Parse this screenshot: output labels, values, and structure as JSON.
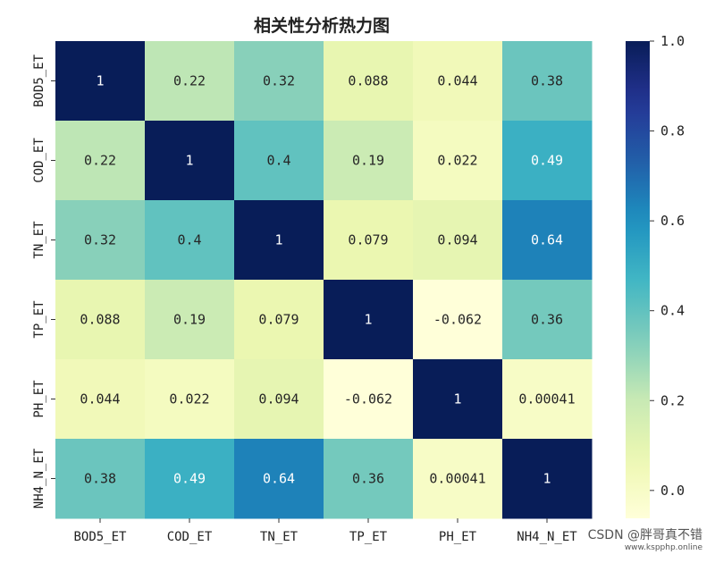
{
  "chart_data": {
    "type": "heatmap",
    "title": "相关性分析热力图",
    "x_labels": [
      "BOD5_ET",
      "COD_ET",
      "TN_ET",
      "TP_ET",
      "PH_ET",
      "NH4_N_ET"
    ],
    "y_labels": [
      "BOD5_ET",
      "COD_ET",
      "TN_ET",
      "TP_ET",
      "PH_ET",
      "NH4_N_ET"
    ],
    "values": [
      [
        1,
        0.22,
        0.32,
        0.088,
        0.044,
        0.38
      ],
      [
        0.22,
        1,
        0.4,
        0.19,
        0.022,
        0.49
      ],
      [
        0.32,
        0.4,
        1,
        0.079,
        0.094,
        0.64
      ],
      [
        0.088,
        0.19,
        0.079,
        1,
        -0.062,
        0.36
      ],
      [
        0.044,
        0.022,
        0.094,
        -0.062,
        1,
        0.00041
      ],
      [
        0.38,
        0.49,
        0.64,
        0.36,
        0.00041,
        1
      ]
    ],
    "value_labels": [
      [
        "1",
        "0.22",
        "0.32",
        "0.088",
        "0.044",
        "0.38"
      ],
      [
        "0.22",
        "1",
        "0.4",
        "0.19",
        "0.022",
        "0.49"
      ],
      [
        "0.32",
        "0.4",
        "1",
        "0.079",
        "0.094",
        "0.64"
      ],
      [
        "0.088",
        "0.19",
        "0.079",
        "1",
        "-0.062",
        "0.36"
      ],
      [
        "0.044",
        "0.022",
        "0.094",
        "-0.062",
        "1",
        "0.00041"
      ],
      [
        "0.38",
        "0.49",
        "0.64",
        "0.36",
        "0.00041",
        "1"
      ]
    ],
    "colormap": "YlGnBu",
    "vmin": -0.062,
    "vmax": 1.0,
    "colorbar_ticks": [
      "0.0",
      "0.2",
      "0.4",
      "0.6",
      "0.8",
      "1.0"
    ],
    "colorbar_tick_values": [
      0.0,
      0.2,
      0.4,
      0.6,
      0.8,
      1.0
    ],
    "grid": false
  },
  "watermark": {
    "line1": "CSDN @胖哥真不错",
    "line2": "www.kspphp.online"
  }
}
